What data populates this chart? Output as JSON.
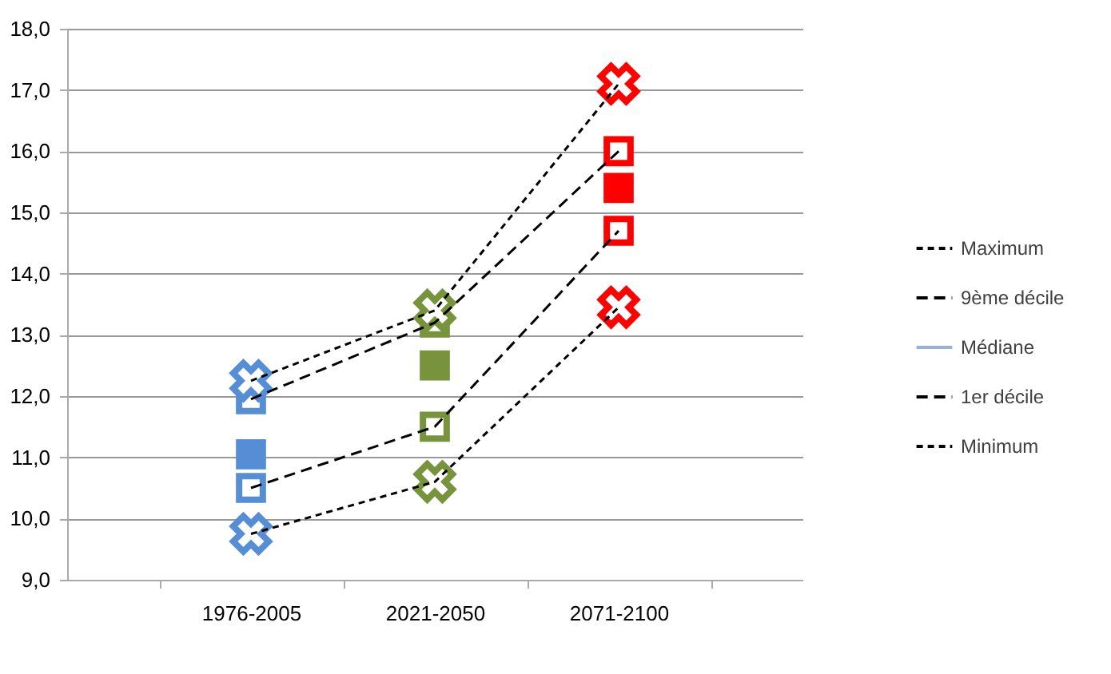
{
  "chart_data": {
    "type": "line",
    "categories": [
      "1976-2005",
      "2021-2050",
      "2071-2100"
    ],
    "series": [
      {
        "name": "Maximum",
        "color": "#000000",
        "line_style": "dotted",
        "marker": "cross",
        "colors": [
          "#558ed5",
          "#77933c",
          "#ff0000"
        ],
        "values": [
          12.25,
          13.4,
          17.1
        ]
      },
      {
        "name": "9ème décile",
        "color": "#000000",
        "line_style": "dashed",
        "marker": "square",
        "colors": [
          "#558ed5",
          "#77933c",
          "#ff0000"
        ],
        "values": [
          11.95,
          13.2,
          16.0
        ]
      },
      {
        "name": "Médiane",
        "type": "scatter",
        "color": "#95b3d7",
        "marker": "square",
        "colors": [
          "#558ed5",
          "#77933c",
          "#ff0000"
        ],
        "values": [
          11.05,
          12.5,
          15.4
        ]
      },
      {
        "name": "1er décile",
        "color": "#000000",
        "line_style": "dashed",
        "marker": "square",
        "colors": [
          "#558ed5",
          "#77933c",
          "#ff0000"
        ],
        "values": [
          10.5,
          11.5,
          14.7
        ]
      },
      {
        "name": "Minimum",
        "color": "#000000",
        "line_style": "dotted",
        "marker": "cross",
        "colors": [
          "#558ed5",
          "#77933c",
          "#ff0000"
        ],
        "values": [
          9.75,
          10.6,
          13.45
        ]
      }
    ],
    "ylim": [
      9,
      18
    ],
    "yticks": [
      {
        "value": 9,
        "label": "9,0"
      },
      {
        "value": 10,
        "label": "10,0"
      },
      {
        "value": 11,
        "label": "11,0"
      },
      {
        "value": 12,
        "label": "12,0"
      },
      {
        "value": 13,
        "label": "13,0"
      },
      {
        "value": 14,
        "label": "14,0"
      },
      {
        "value": 15,
        "label": "15,0"
      },
      {
        "value": 16,
        "label": "16,0"
      },
      {
        "value": 17,
        "label": "17,0"
      },
      {
        "value": 18,
        "label": "18,0"
      }
    ],
    "grid": "y",
    "legend": "right"
  }
}
